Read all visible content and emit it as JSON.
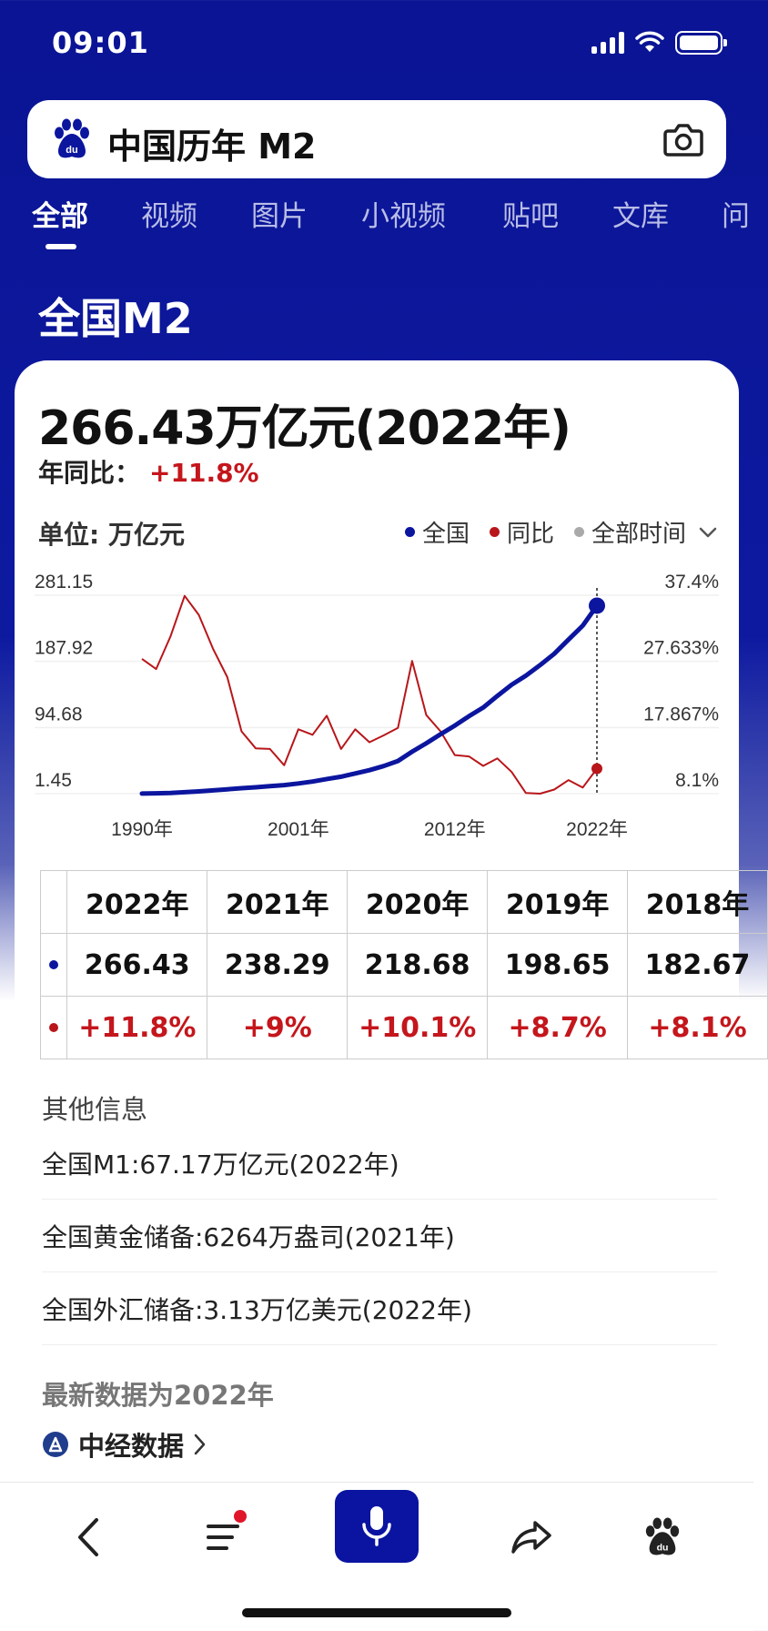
{
  "status_bar": {
    "time": "09:01"
  },
  "search": {
    "query": "中国历年 M2"
  },
  "tabs": [
    "全部",
    "视频",
    "图片",
    "小视频",
    "贴吧",
    "文库",
    "问"
  ],
  "section_title": "全国M2",
  "summary": {
    "value": "266.43万亿元(2022年)",
    "yoy_label": "年同比：",
    "yoy_value": "+11.8%"
  },
  "chart": {
    "unit_label": "单位: 万亿元",
    "legend": {
      "national": "全国",
      "yoy": "同比",
      "all_time": "全部时间"
    }
  },
  "chart_data": {
    "type": "line",
    "x": [
      1990,
      1991,
      1992,
      1993,
      1994,
      1995,
      1996,
      1997,
      1998,
      1999,
      2000,
      2001,
      2002,
      2003,
      2004,
      2005,
      2006,
      2007,
      2008,
      2009,
      2010,
      2011,
      2012,
      2013,
      2014,
      2015,
      2016,
      2017,
      2018,
      2019,
      2020,
      2021,
      2022
    ],
    "x_tick_labels": [
      "1990年",
      "2001年",
      "2012年",
      "2022年"
    ],
    "y_left_ticks": [
      "281.15",
      "187.92",
      "94.68",
      "1.45"
    ],
    "y_left_range": [
      1.45,
      281.15
    ],
    "y_right_ticks": [
      "37.4%",
      "27.633%",
      "17.867%",
      "8.1%"
    ],
    "y_right_range": [
      8.1,
      37.4
    ],
    "series": [
      {
        "name": "全国",
        "color": "#0b159e",
        "values": [
          1.53,
          1.94,
          2.54,
          3.49,
          4.69,
          6.07,
          7.61,
          9.1,
          10.45,
          11.99,
          13.46,
          15.83,
          18.5,
          22.12,
          25.32,
          29.88,
          34.56,
          40.34,
          47.52,
          60.62,
          72.58,
          85.16,
          97.41,
          110.65,
          122.84,
          139.23,
          155.01,
          167.68,
          182.67,
          198.65,
          218.68,
          238.29,
          266.43
        ]
      },
      {
        "name": "同比",
        "color": "#b8161a",
        "values": [
          28.0,
          26.5,
          31.3,
          37.3,
          34.5,
          29.5,
          25.3,
          17.3,
          14.8,
          14.7,
          12.3,
          17.6,
          16.8,
          19.6,
          14.7,
          17.6,
          15.7,
          16.7,
          17.8,
          27.7,
          19.7,
          17.3,
          13.8,
          13.6,
          12.2,
          13.3,
          11.3,
          8.2,
          8.1,
          8.7,
          10.1,
          9.0,
          11.8
        ]
      }
    ]
  },
  "table": {
    "years": [
      "2022年",
      "2021年",
      "2020年",
      "2019年",
      "2018年"
    ],
    "m2": [
      "266.43",
      "238.29",
      "218.68",
      "198.65",
      "182.67"
    ],
    "yoy": [
      "+11.8%",
      "+9%",
      "+10.1%",
      "+8.7%",
      "+8.1%"
    ],
    "national_color": "#0b159e",
    "yoy_color": "#b8161a"
  },
  "other_info": {
    "title": "其他信息",
    "items": [
      "全国M1:67.17万亿元(2022年)",
      "全国黄金储备:6264万盎司(2021年)",
      "全国外汇储备:3.13万亿美元(2022年)"
    ]
  },
  "latest_note": "最新数据为2022年",
  "source": "中经数据",
  "bottom_nav": [
    "back-icon",
    "menu-icon",
    "microphone-icon",
    "share-icon",
    "baidu-paw-icon"
  ],
  "colors": {
    "header_bg": "#0a1494",
    "accent_red": "#c4161c",
    "mic_bg": "#0a14a0"
  }
}
